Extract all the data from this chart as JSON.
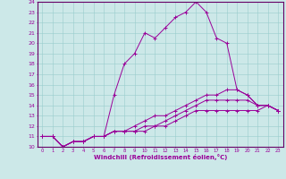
{
  "xlabel": "Windchill (Refroidissement éolien,°C)",
  "background_color": "#cce8e8",
  "grid_color": "#99cccc",
  "line_color": "#990099",
  "spine_color": "#660066",
  "xlim": [
    -0.5,
    23.5
  ],
  "ylim": [
    10,
    24
  ],
  "yticks": [
    10,
    11,
    12,
    13,
    14,
    15,
    16,
    17,
    18,
    19,
    20,
    21,
    22,
    23,
    24
  ],
  "xticks": [
    0,
    1,
    2,
    3,
    4,
    5,
    6,
    7,
    8,
    9,
    10,
    11,
    12,
    13,
    14,
    15,
    16,
    17,
    18,
    19,
    20,
    21,
    22,
    23
  ],
  "series": [
    [
      11.0,
      11.0,
      10.0,
      10.5,
      10.5,
      11.0,
      11.0,
      15.0,
      18.0,
      19.0,
      21.0,
      20.5,
      21.5,
      22.5,
      23.0,
      24.0,
      23.0,
      20.5,
      20.0,
      15.5,
      15.0,
      14.0,
      14.0,
      13.5
    ],
    [
      11.0,
      11.0,
      10.0,
      10.5,
      10.5,
      11.0,
      11.0,
      11.5,
      11.5,
      12.0,
      12.5,
      13.0,
      13.0,
      13.5,
      14.0,
      14.5,
      15.0,
      15.0,
      15.5,
      15.5,
      15.0,
      14.0,
      14.0,
      13.5
    ],
    [
      11.0,
      11.0,
      10.0,
      10.5,
      10.5,
      11.0,
      11.0,
      11.5,
      11.5,
      11.5,
      12.0,
      12.0,
      12.5,
      13.0,
      13.5,
      14.0,
      14.5,
      14.5,
      14.5,
      14.5,
      14.5,
      14.0,
      14.0,
      13.5
    ],
    [
      11.0,
      11.0,
      10.0,
      10.5,
      10.5,
      11.0,
      11.0,
      11.5,
      11.5,
      11.5,
      11.5,
      12.0,
      12.0,
      12.5,
      13.0,
      13.5,
      13.5,
      13.5,
      13.5,
      13.5,
      13.5,
      13.5,
      14.0,
      13.5
    ]
  ]
}
